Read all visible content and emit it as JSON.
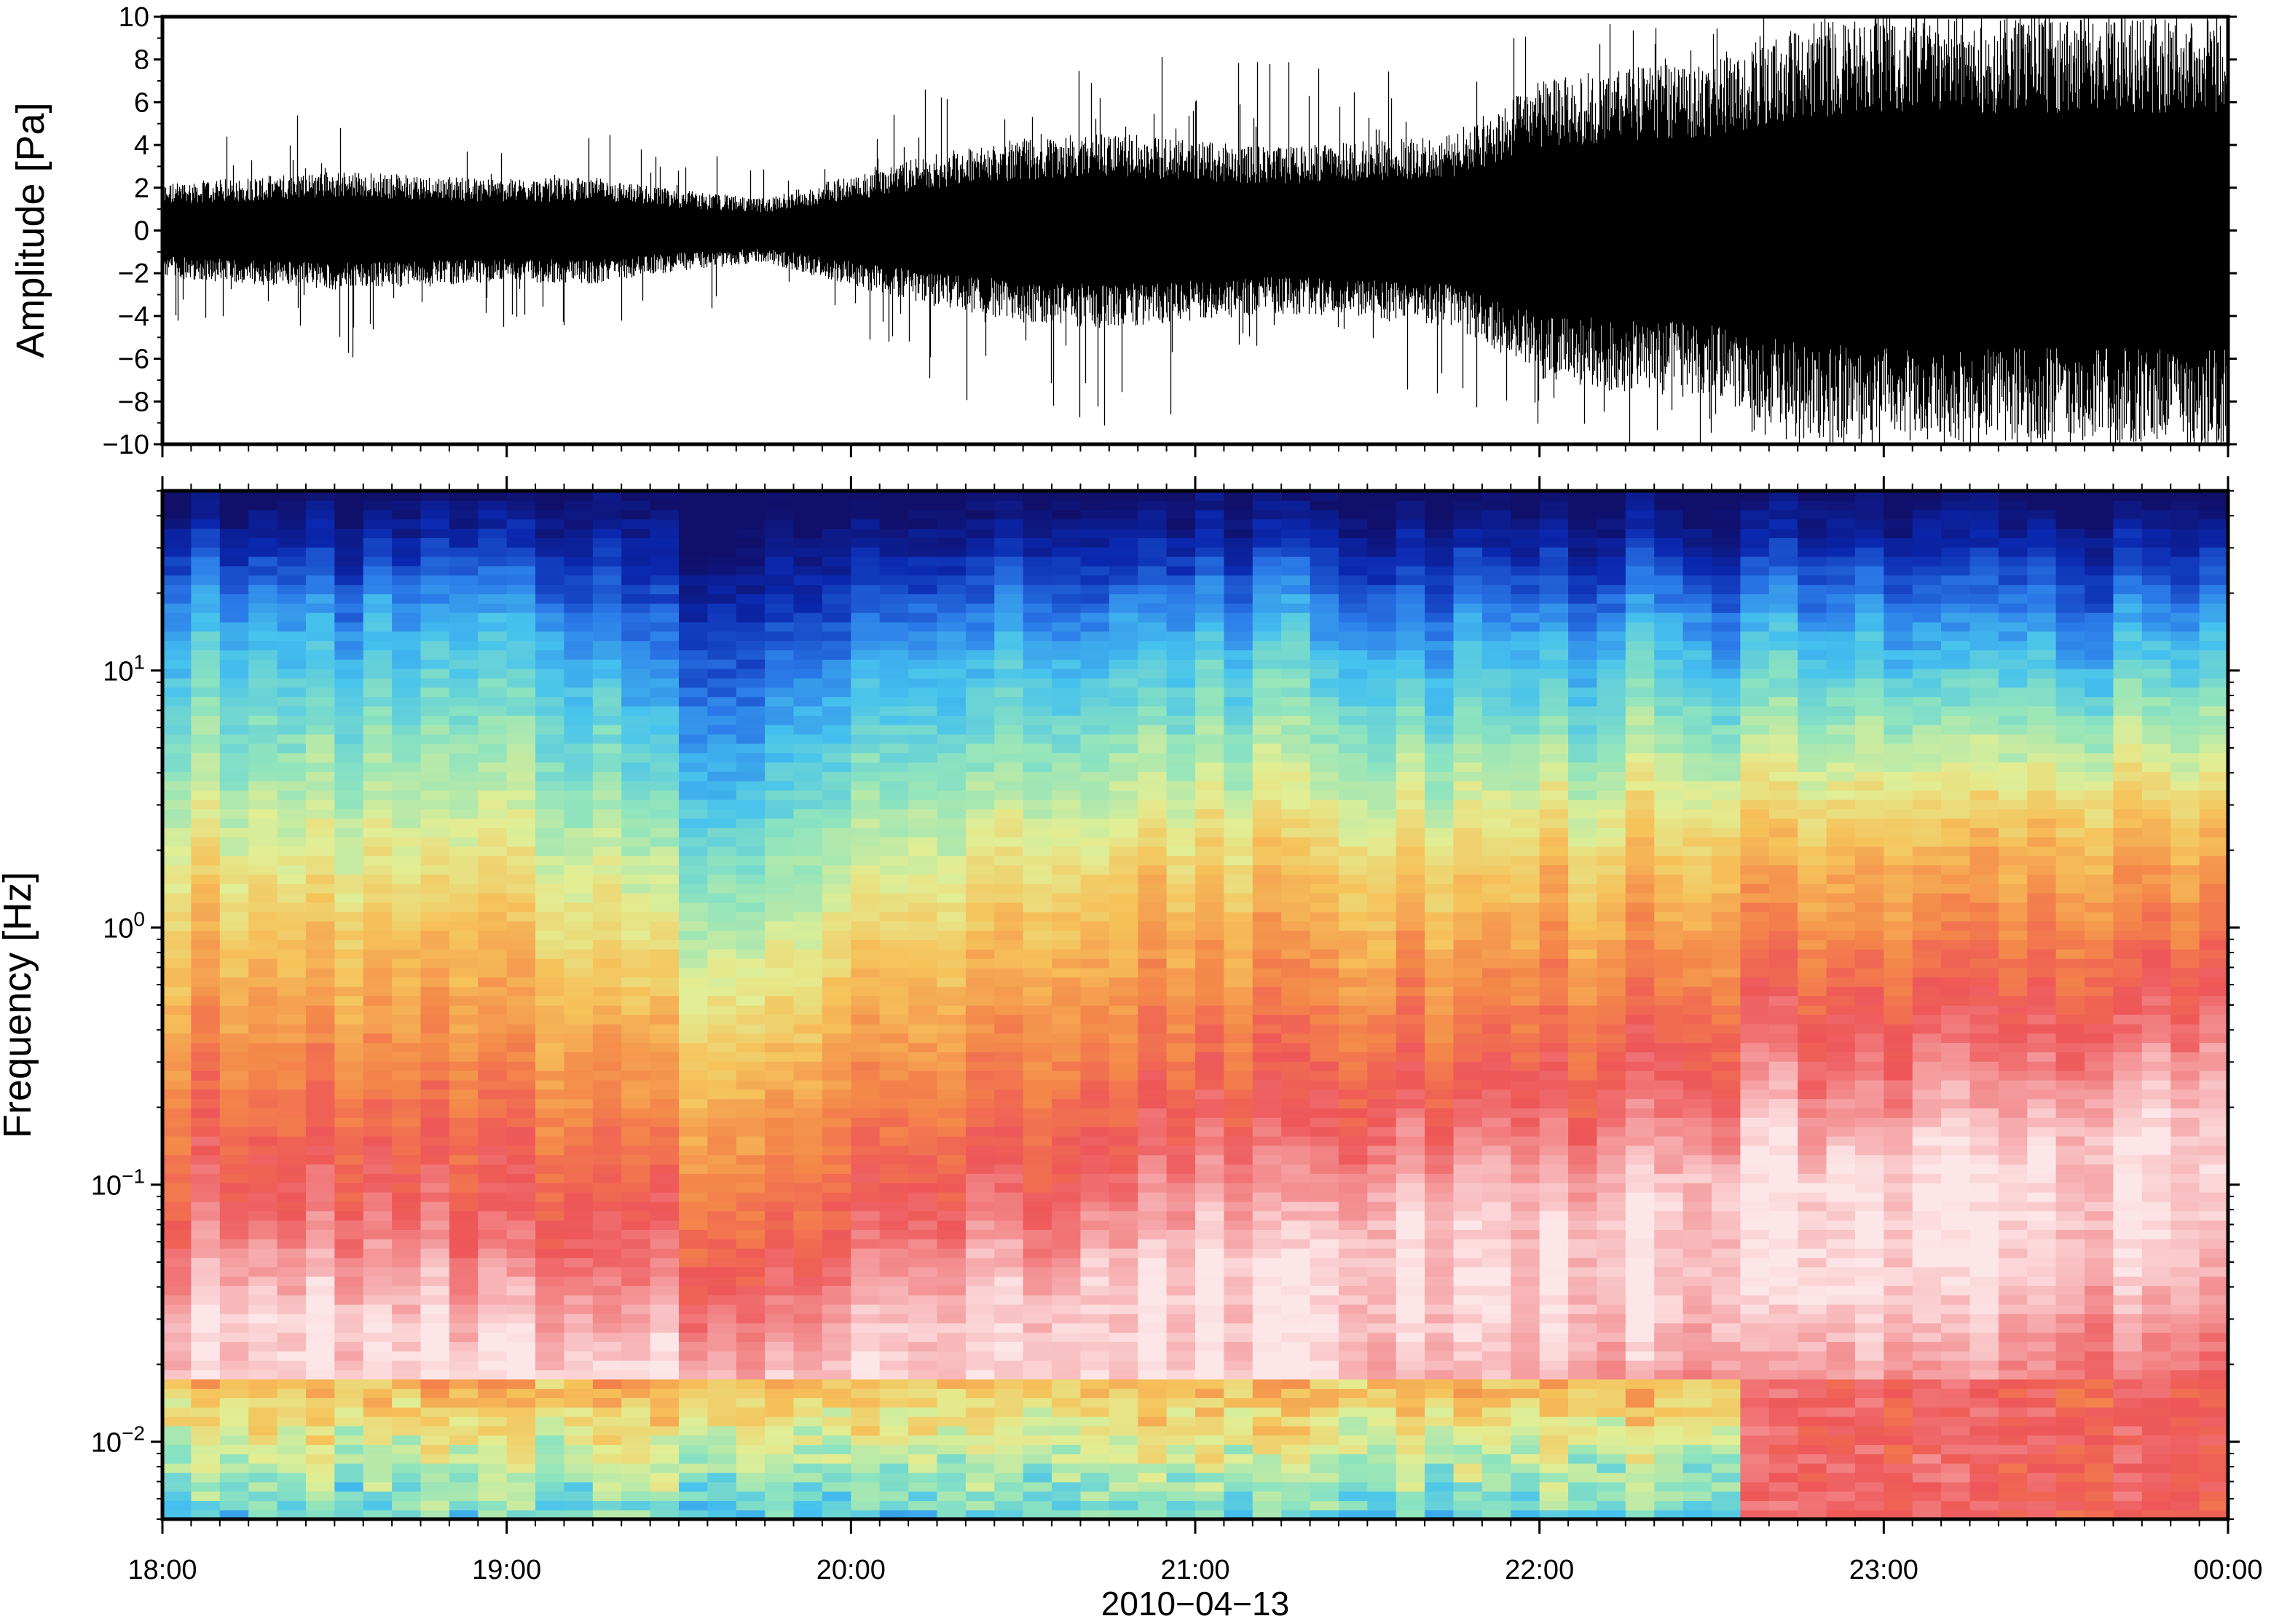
{
  "chart_data": [
    {
      "panel": "waveform",
      "type": "line",
      "ylabel": "Amplitude [Pa]",
      "xlabel": "",
      "ylim": [
        -10,
        10
      ],
      "yticks": [
        {
          "value": 10,
          "label": "10"
        },
        {
          "value": 8,
          "label": "8"
        },
        {
          "value": 6,
          "label": "6"
        },
        {
          "value": 4,
          "label": "4"
        },
        {
          "value": 2,
          "label": "2"
        },
        {
          "value": 0,
          "label": "0"
        },
        {
          "value": -2,
          "label": "−2"
        },
        {
          "value": -4,
          "label": "−4"
        },
        {
          "value": -6,
          "label": "−6"
        },
        {
          "value": -8,
          "label": "−8"
        },
        {
          "value": -10,
          "label": "−10"
        }
      ],
      "xlim": [
        "18:00",
        "00:00"
      ],
      "series": [
        {
          "color": "#000000",
          "x": [
            "18:00",
            "18:15",
            "18:30",
            "18:45",
            "19:00",
            "19:15",
            "19:30",
            "19:45",
            "20:00",
            "20:15",
            "20:30",
            "20:45",
            "21:00",
            "21:15",
            "21:30",
            "21:45",
            "22:00",
            "22:15",
            "22:30",
            "22:45",
            "23:00",
            "23:15",
            "23:30",
            "23:45",
            "00:00"
          ],
          "envelope_pa": [
            2.2,
            2.5,
            2.8,
            2.6,
            2.4,
            2.5,
            1.9,
            1.5,
            2.6,
            3.6,
            4.3,
            4.6,
            4.2,
            3.9,
            4.2,
            4.5,
            7.0,
            7.6,
            7.9,
            9.5,
            10.0,
            10.0,
            10.0,
            10.0,
            10.0
          ],
          "peak_pa": [
            5.5,
            4.5,
            6.5,
            5.0,
            4.8,
            5.0,
            4.0,
            3.5,
            4.5,
            8.8,
            7.5,
            9.5,
            8.5,
            8.0,
            8.0,
            8.5,
            9.5,
            10.0,
            10.0,
            10.0,
            10.0,
            10.0,
            10.0,
            10.0,
            10.0
          ]
        }
      ]
    },
    {
      "panel": "spectrogram",
      "type": "heatmap",
      "ylabel": "Frequency [Hz]",
      "xlabel": "2010−04−13",
      "y_scale": "log",
      "ylim": [
        0.005,
        50
      ],
      "yticks": [
        {
          "value": 10,
          "base": "10",
          "exp": "1"
        },
        {
          "value": 1,
          "base": "10",
          "exp": "0"
        },
        {
          "value": 0.1,
          "base": "10",
          "exp": "−1"
        },
        {
          "value": 0.01,
          "base": "10",
          "exp": "−2"
        }
      ],
      "xticks": [
        "18:00",
        "19:00",
        "20:00",
        "21:00",
        "22:00",
        "23:00",
        "00:00"
      ],
      "xlim": [
        "18:00",
        "00:00"
      ],
      "grid": false,
      "colormap": [
        "#10106a",
        "#0a28b0",
        "#2a78e8",
        "#46c2ee",
        "#8ee4be",
        "#e2ee94",
        "#f6c25a",
        "#f4884a",
        "#ee5658",
        "#f4989a",
        "#fde6e8"
      ],
      "x": [
        "18:00",
        "18:30",
        "19:00",
        "19:30",
        "19:45",
        "20:00",
        "20:30",
        "21:00",
        "21:30",
        "22:00",
        "22:30",
        "23:00",
        "23:30",
        "00:00"
      ],
      "blue_to_cyan_transition_hz": [
        16,
        15,
        15,
        6,
        5,
        11,
        13,
        13,
        13,
        13,
        13,
        13,
        13,
        14
      ],
      "yellow_to_orange_transition_hz": [
        1.0,
        0.9,
        0.8,
        0.35,
        0.35,
        0.7,
        1.1,
        1.4,
        1.5,
        1.6,
        1.9,
        2.1,
        2.4,
        2.8
      ],
      "red_to_pink_transition_hz": [
        0.08,
        0.08,
        0.06,
        0.05,
        0.05,
        0.07,
        0.1,
        0.15,
        0.18,
        0.2,
        0.3,
        0.35,
        0.4,
        0.5
      ]
    }
  ]
}
